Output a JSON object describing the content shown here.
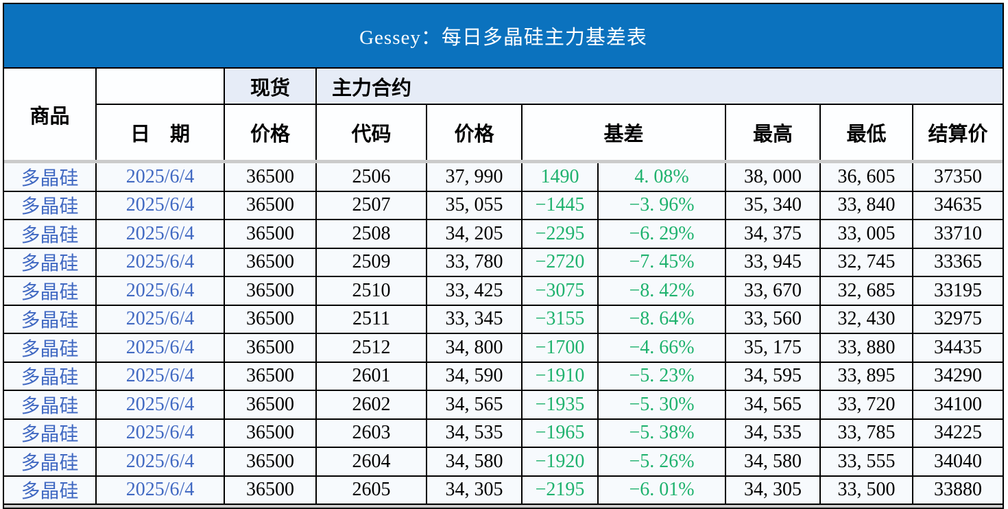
{
  "title": "Gessey：每日多晶硅主力基差表",
  "columns": {
    "commodity": "商品",
    "date": "日　期",
    "spot_group": "现货",
    "main_contract_group": "主力合约",
    "spot_price": "价格",
    "code": "代码",
    "price": "价格",
    "basis": "基差",
    "high": "最高",
    "low": "最低",
    "settlement": "结算价"
  },
  "colors": {
    "banner_blue": "#0b72be",
    "header_tint": "#e6ecf7",
    "row_background": "#f7fafd",
    "commodity_blue": "#4169c2",
    "basis_green": "#1fb26e",
    "divider_gray": "#cbcbcb"
  },
  "rows": [
    {
      "commodity": "多晶硅",
      "date": "2025/6/4",
      "spot_price": "36500",
      "code": "2506",
      "price": "37, 990",
      "basis": "1490",
      "basis_pct": "4. 08%",
      "high": "38, 000",
      "low": "36, 605",
      "settlement": "37350"
    },
    {
      "commodity": "多晶硅",
      "date": "2025/6/4",
      "spot_price": "36500",
      "code": "2507",
      "price": "35, 055",
      "basis": "−1445",
      "basis_pct": "−3. 96%",
      "high": "35, 340",
      "low": "33, 840",
      "settlement": "34635"
    },
    {
      "commodity": "多晶硅",
      "date": "2025/6/4",
      "spot_price": "36500",
      "code": "2508",
      "price": "34, 205",
      "basis": "−2295",
      "basis_pct": "−6. 29%",
      "high": "34, 375",
      "low": "33, 005",
      "settlement": "33710"
    },
    {
      "commodity": "多晶硅",
      "date": "2025/6/4",
      "spot_price": "36500",
      "code": "2509",
      "price": "33, 780",
      "basis": "−2720",
      "basis_pct": "−7. 45%",
      "high": "33, 945",
      "low": "32, 745",
      "settlement": "33365"
    },
    {
      "commodity": "多晶硅",
      "date": "2025/6/4",
      "spot_price": "36500",
      "code": "2510",
      "price": "33, 425",
      "basis": "−3075",
      "basis_pct": "−8. 42%",
      "high": "33, 670",
      "low": "32, 685",
      "settlement": "33195"
    },
    {
      "commodity": "多晶硅",
      "date": "2025/6/4",
      "spot_price": "36500",
      "code": "2511",
      "price": "33, 345",
      "basis": "−3155",
      "basis_pct": "−8. 64%",
      "high": "33, 560",
      "low": "32, 430",
      "settlement": "32975"
    },
    {
      "commodity": "多晶硅",
      "date": "2025/6/4",
      "spot_price": "36500",
      "code": "2512",
      "price": "34, 800",
      "basis": "−1700",
      "basis_pct": "−4. 66%",
      "high": "35, 175",
      "low": "33, 880",
      "settlement": "34435"
    },
    {
      "commodity": "多晶硅",
      "date": "2025/6/4",
      "spot_price": "36500",
      "code": "2601",
      "price": "34, 590",
      "basis": "−1910",
      "basis_pct": "−5. 23%",
      "high": "34, 595",
      "low": "33, 895",
      "settlement": "34290"
    },
    {
      "commodity": "多晶硅",
      "date": "2025/6/4",
      "spot_price": "36500",
      "code": "2602",
      "price": "34, 565",
      "basis": "−1935",
      "basis_pct": "−5. 30%",
      "high": "34, 565",
      "low": "33, 720",
      "settlement": "34100"
    },
    {
      "commodity": "多晶硅",
      "date": "2025/6/4",
      "spot_price": "36500",
      "code": "2603",
      "price": "34, 535",
      "basis": "−1965",
      "basis_pct": "−5. 38%",
      "high": "34, 535",
      "low": "33, 785",
      "settlement": "34225"
    },
    {
      "commodity": "多晶硅",
      "date": "2025/6/4",
      "spot_price": "36500",
      "code": "2604",
      "price": "34, 580",
      "basis": "−1920",
      "basis_pct": "−5. 26%",
      "high": "34, 580",
      "low": "33, 555",
      "settlement": "34040"
    },
    {
      "commodity": "多晶硅",
      "date": "2025/6/4",
      "spot_price": "36500",
      "code": "2605",
      "price": "34, 305",
      "basis": "−2195",
      "basis_pct": "−6. 01%",
      "high": "34, 305",
      "low": "33, 500",
      "settlement": "33880"
    }
  ]
}
